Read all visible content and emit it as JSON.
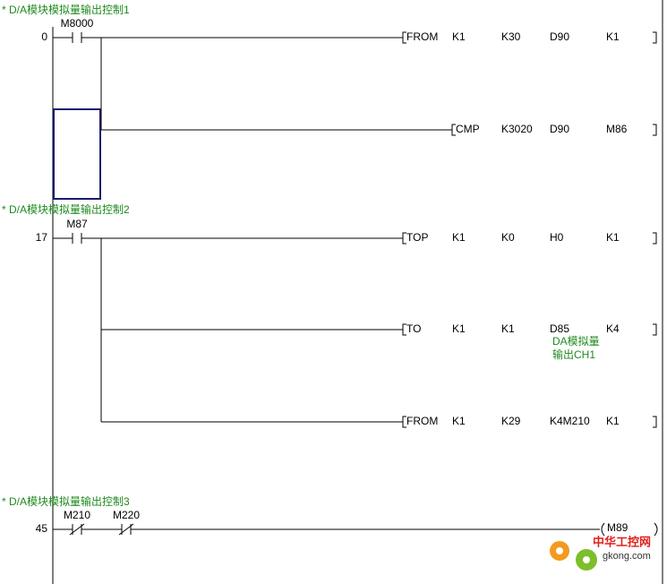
{
  "rungs": [
    {
      "comment": "* D/A模块模拟量输出控制1",
      "step": "0",
      "contacts": [
        {
          "label": "M8000",
          "kind": "normally_open"
        }
      ],
      "instructions": [
        {
          "name": "FROM",
          "operands": [
            "K1",
            "K30",
            "D90",
            "K1"
          ]
        },
        {
          "name": "CMP",
          "operands": [
            "K3020",
            "D90",
            "M86"
          ]
        }
      ]
    },
    {
      "comment": "* D/A模块模拟量输出控制2",
      "step": "17",
      "contacts": [
        {
          "label": "M87",
          "kind": "normally_open"
        }
      ],
      "instructions": [
        {
          "name": "TOP",
          "operands": [
            "K1",
            "K0",
            "H0",
            "K1"
          ]
        },
        {
          "name": "TO",
          "operands": [
            "K1",
            "K1",
            "D85",
            "K4"
          ],
          "annotation": [
            "DA模拟量",
            "输出CH1"
          ]
        },
        {
          "name": "FROM",
          "operands": [
            "K1",
            "K29",
            "K4M210",
            "K1"
          ]
        }
      ]
    },
    {
      "comment": "* D/A模块模拟量输出控制3",
      "step": "45",
      "contacts": [
        {
          "label": "M210",
          "kind": "normally_closed"
        },
        {
          "label": "M220",
          "kind": "normally_closed"
        }
      ],
      "coil": "M89"
    }
  ],
  "watermark": {
    "title": "中华工控网",
    "site": "gkong.com"
  }
}
